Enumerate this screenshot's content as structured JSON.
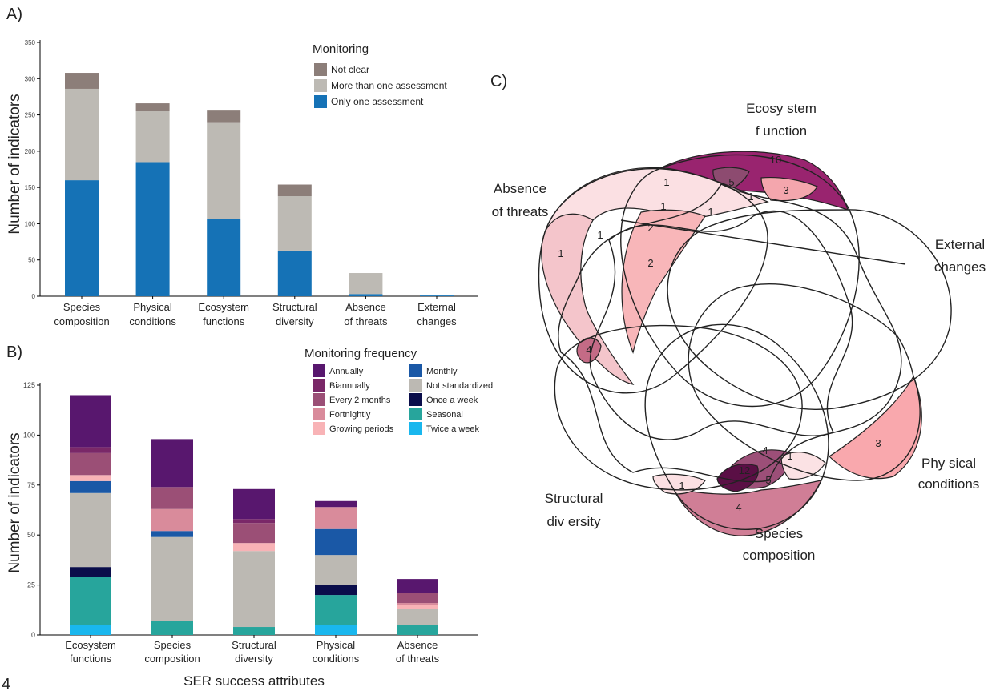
{
  "panels": {
    "a": "A)",
    "b": "B)",
    "c": "C)"
  },
  "stray_text": "4",
  "chart_data": [
    {
      "id": "A",
      "type": "bar",
      "stacked": true,
      "ylabel": "Number of indicators",
      "ylim": [
        0,
        350
      ],
      "yticks": [
        0,
        50,
        100,
        150,
        200,
        250,
        300,
        350
      ],
      "categories": [
        "Species composition",
        "Physical conditions",
        "Ecosystem functions",
        "Structural diversity",
        "Absence of threats",
        "External changes"
      ],
      "category_lines": [
        [
          "Species",
          "composition"
        ],
        [
          "Physical",
          "conditions"
        ],
        [
          "Ecosystem",
          "functions"
        ],
        [
          "Structural",
          "diversity"
        ],
        [
          "Absence",
          "of threats"
        ],
        [
          "External",
          "changes"
        ]
      ],
      "legend_title": "Monitoring",
      "legend_position": "top-right",
      "legend_order": [
        "Not clear",
        "More than one assessment",
        "Only one assessment"
      ],
      "series": [
        {
          "name": "Only one assessment",
          "color": "#1572b6",
          "values": [
            160,
            185,
            106,
            63,
            3,
            1
          ]
        },
        {
          "name": "More than one assessment",
          "color": "#bdbab4",
          "values": [
            126,
            70,
            134,
            75,
            29,
            0
          ]
        },
        {
          "name": "Not clear",
          "color": "#8c7e79",
          "values": [
            22,
            11,
            16,
            16,
            0,
            0
          ]
        }
      ]
    },
    {
      "id": "B",
      "type": "bar",
      "stacked": true,
      "xlabel": "SER success attributes",
      "ylabel": "Number of indicators",
      "ylim": [
        0,
        125
      ],
      "yticks": [
        0,
        25,
        50,
        75,
        100,
        125
      ],
      "categories": [
        "Ecosystem functions",
        "Species composition",
        "Structural diversity",
        "Physical conditions",
        "Absence of threats"
      ],
      "category_lines": [
        [
          "Ecosystem",
          "functions"
        ],
        [
          "Species",
          "composition"
        ],
        [
          "Structural",
          "diversity"
        ],
        [
          "Physical",
          "conditions"
        ],
        [
          "Absence",
          "of threats"
        ]
      ],
      "legend_title": "Monitoring frequency",
      "legend_position": "top-right",
      "legend_columns": [
        [
          "Annually",
          "Biannually",
          "Every 2 months",
          "Fortnightly",
          "Growing periods"
        ],
        [
          "Monthly",
          "Not standardized",
          "Once a week",
          "Seasonal",
          "Twice a week"
        ]
      ],
      "series": [
        {
          "name": "Twice a week",
          "color": "#19b7ee",
          "values": [
            5,
            0,
            0,
            5,
            0
          ]
        },
        {
          "name": "Seasonal",
          "color": "#27a59c",
          "values": [
            24,
            7,
            4,
            15,
            5
          ]
        },
        {
          "name": "Once a week",
          "color": "#0a0d4a",
          "values": [
            5,
            0,
            0,
            5,
            0
          ]
        },
        {
          "name": "Not standardized",
          "color": "#bcb9b3",
          "values": [
            37,
            42,
            38,
            15,
            8
          ]
        },
        {
          "name": "Monthly",
          "color": "#1a58a6",
          "values": [
            6,
            3,
            0,
            13,
            0
          ]
        },
        {
          "name": "Growing periods",
          "color": "#f8b3b6",
          "values": [
            3,
            0,
            4,
            0,
            2
          ]
        },
        {
          "name": "Fortnightly",
          "color": "#d98b9b",
          "values": [
            0,
            11,
            0,
            11,
            1
          ]
        },
        {
          "name": "Every 2 months",
          "color": "#9b4f76",
          "values": [
            11,
            11,
            10,
            0,
            5
          ]
        },
        {
          "name": "Biannually",
          "color": "#7a2868",
          "values": [
            3,
            0,
            2,
            0,
            0
          ]
        },
        {
          "name": "Annually",
          "color": "#58176e",
          "values": [
            26,
            24,
            15,
            3,
            7
          ]
        }
      ]
    },
    {
      "id": "C",
      "type": "venn",
      "sets": [
        {
          "name": "Ecosystem function",
          "lines": [
            "Ecosy stem",
            "f unction"
          ]
        },
        {
          "name": "External changes",
          "lines": [
            "External",
            "changes"
          ]
        },
        {
          "name": "Physical conditions",
          "lines": [
            "Phy sical",
            "conditions"
          ]
        },
        {
          "name": "Species composition",
          "lines": [
            "Species",
            "composition"
          ]
        },
        {
          "name": "Structural diversity",
          "lines": [
            "Structural",
            "div ersity"
          ]
        },
        {
          "name": "Absence of threats",
          "lines": [
            "Absence",
            "of threats"
          ]
        }
      ],
      "region_values": [
        10,
        5,
        3,
        1,
        1,
        1,
        1,
        1,
        2,
        2,
        1,
        4,
        3,
        4,
        1,
        12,
        5,
        4,
        1
      ]
    }
  ]
}
